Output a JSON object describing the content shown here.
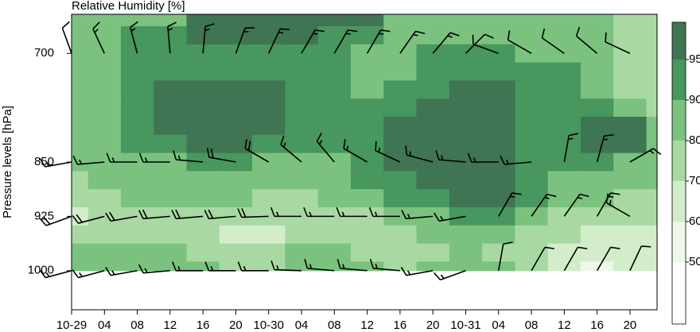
{
  "chart_data": {
    "type": "contour",
    "title": "Relative Humidity [%]",
    "y_label": "Pressure levels [hPa]",
    "x": [
      0,
      4,
      8,
      12,
      16,
      20,
      24,
      28,
      32,
      36,
      40,
      44,
      48,
      52,
      56,
      60,
      64,
      68,
      72
    ],
    "levels": [
      650,
      675,
      700,
      725,
      750,
      775,
      800,
      825,
      850,
      875,
      900,
      925,
      950,
      975,
      1000
    ],
    "z": [
      [
        85,
        85,
        86,
        88,
        96,
        97,
        97,
        97,
        96,
        96,
        86,
        85,
        85,
        85,
        84,
        84,
        83,
        76,
        75
      ],
      [
        85,
        86,
        92,
        93,
        96,
        96,
        96,
        96,
        93,
        92,
        86,
        85,
        84,
        84,
        84,
        84,
        82,
        76,
        74
      ],
      [
        84,
        86,
        92,
        93,
        93,
        93,
        93,
        93,
        92,
        88,
        86,
        91,
        92,
        92,
        88,
        85,
        82,
        76,
        74
      ],
      [
        84,
        85,
        92,
        94,
        93,
        93,
        93,
        92,
        91,
        86,
        88,
        93,
        93,
        93,
        92,
        90,
        86,
        77,
        74
      ],
      [
        84,
        88,
        92,
        96,
        97,
        97,
        96,
        93,
        91,
        86,
        91,
        94,
        96,
        95,
        93,
        91,
        88,
        78,
        75
      ],
      [
        84,
        88,
        92,
        97,
        98,
        98,
        97,
        93,
        91,
        90,
        93,
        96,
        97,
        97,
        93,
        91,
        92,
        80,
        75
      ],
      [
        83,
        87,
        91,
        97,
        98,
        98,
        97,
        92,
        91,
        91,
        96,
        97,
        97,
        97,
        94,
        93,
        96,
        96,
        82
      ],
      [
        82,
        85,
        90,
        94,
        97,
        96,
        93,
        91,
        90,
        92,
        97,
        98,
        98,
        97,
        94,
        92,
        96,
        97,
        84
      ],
      [
        83,
        84,
        86,
        89,
        91,
        90,
        88,
        86,
        89,
        93,
        96,
        97,
        98,
        97,
        94,
        91,
        92,
        89,
        82
      ],
      [
        78,
        82,
        84,
        85,
        87,
        86,
        85,
        84,
        88,
        92,
        94,
        96,
        97,
        96,
        92,
        87,
        85,
        83,
        80
      ],
      [
        72,
        76,
        80,
        82,
        82,
        80,
        78,
        78,
        80,
        88,
        92,
        93,
        96,
        95,
        90,
        84,
        80,
        78,
        75
      ],
      [
        68,
        72,
        75,
        76,
        74,
        72,
        72,
        72,
        70,
        76,
        84,
        88,
        92,
        91,
        84,
        78,
        74,
        72,
        72
      ],
      [
        74,
        76,
        76,
        74,
        72,
        66,
        68,
        70,
        72,
        74,
        76,
        80,
        84,
        80,
        76,
        72,
        68,
        66,
        68
      ],
      [
        82,
        84,
        85,
        82,
        78,
        76,
        78,
        80,
        82,
        78,
        74,
        78,
        80,
        76,
        72,
        68,
        62,
        64,
        66
      ],
      [
        84,
        86,
        85,
        84,
        80,
        72,
        75,
        82,
        84,
        80,
        78,
        84,
        86,
        80,
        70,
        64,
        58,
        62,
        60
      ]
    ],
    "colorbar": {
      "levels": [
        50,
        60,
        70,
        80,
        90,
        95
      ],
      "colors": [
        "#ffffff",
        "#edf7ea",
        "#d3ecca",
        "#a9d9a3",
        "#7bc27f",
        "#47975f",
        "#3f7552"
      ]
    },
    "barbs": {
      "x": [
        0,
        4,
        8,
        12,
        16,
        20,
        24,
        28,
        32,
        36,
        40,
        44,
        48,
        52,
        56,
        60,
        64,
        68
      ],
      "levels": [
        700,
        850,
        925,
        1000
      ],
      "direction": [
        [
          340,
          335,
          345,
          355,
          5,
          20,
          25,
          30,
          30,
          30,
          35,
          40,
          45,
          290,
          300,
          305,
          310,
          295
        ],
        [
          260,
          265,
          270,
          270,
          275,
          280,
          300,
          310,
          320,
          300,
          295,
          285,
          275,
          270,
          265,
          10,
          15,
          60
        ],
        [
          250,
          255,
          260,
          265,
          265,
          265,
          268,
          270,
          270,
          270,
          270,
          265,
          260,
          30,
          35,
          35,
          30,
          300
        ],
        [
          255,
          255,
          260,
          265,
          270,
          270,
          270,
          272,
          275,
          275,
          275,
          260,
          250,
          10,
          30,
          30,
          30,
          25
        ]
      ],
      "speed": [
        [
          10,
          15,
          15,
          15,
          15,
          15,
          15,
          15,
          15,
          15,
          15,
          15,
          10,
          10,
          10,
          10,
          10,
          10
        ],
        [
          15,
          15,
          15,
          15,
          15,
          20,
          20,
          15,
          15,
          15,
          15,
          15,
          15,
          15,
          15,
          15,
          15,
          15
        ],
        [
          20,
          20,
          20,
          20,
          20,
          20,
          20,
          15,
          15,
          15,
          15,
          15,
          15,
          15,
          15,
          15,
          15,
          15
        ],
        [
          15,
          15,
          15,
          15,
          15,
          15,
          15,
          15,
          15,
          15,
          15,
          15,
          15,
          10,
          10,
          10,
          10,
          10
        ]
      ]
    },
    "xlim": [
      0,
      71.3
    ],
    "ylim": [
      1054,
      646
    ],
    "xticks": [
      {
        "value": 0,
        "label": "10-29"
      },
      {
        "value": 4,
        "label": "04"
      },
      {
        "value": 8,
        "label": "08"
      },
      {
        "value": 12,
        "label": "12"
      },
      {
        "value": 16,
        "label": "16"
      },
      {
        "value": 20,
        "label": "20"
      },
      {
        "value": 24,
        "label": "10-30"
      },
      {
        "value": 28,
        "label": "04"
      },
      {
        "value": 32,
        "label": "08"
      },
      {
        "value": 36,
        "label": "12"
      },
      {
        "value": 40,
        "label": "16"
      },
      {
        "value": 44,
        "label": "20"
      },
      {
        "value": 48,
        "label": "10-31"
      },
      {
        "value": 52,
        "label": "04"
      },
      {
        "value": 56,
        "label": "08"
      },
      {
        "value": 60,
        "label": "12"
      },
      {
        "value": 64,
        "label": "16"
      },
      {
        "value": 68,
        "label": "20"
      }
    ],
    "yticks": [
      700,
      850,
      925,
      1000
    ]
  }
}
